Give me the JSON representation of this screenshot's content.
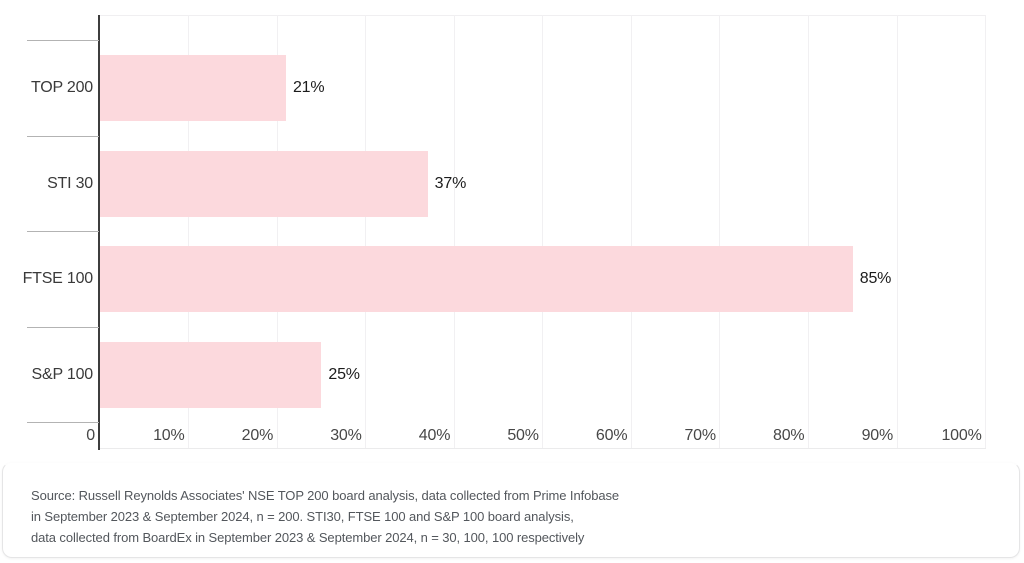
{
  "chart_data": {
    "type": "bar",
    "orientation": "horizontal",
    "title": "",
    "categories": [
      "TOP 200",
      "STI 30",
      "FTSE 100",
      "S&P 100"
    ],
    "values": [
      21,
      37,
      85,
      25
    ],
    "value_labels": [
      "21%",
      "37%",
      "85%",
      "25%"
    ],
    "xlim": [
      0,
      100
    ],
    "x_ticks": [
      0,
      10,
      20,
      30,
      40,
      50,
      60,
      70,
      80,
      90,
      100
    ],
    "x_tick_labels": [
      "0",
      "10%",
      "20%",
      "30%",
      "40%",
      "50%",
      "60%",
      "70%",
      "80%",
      "90%",
      "100%"
    ],
    "grid": "vertical gridlines every 10%",
    "legend": "none",
    "bar_color": "#FCD9DD"
  },
  "source_note": {
    "lines": [
      "Source: Russell Reynolds Associates' NSE TOP 200 board analysis, data collected from Prime Infobase",
      "in September 2023 & September 2024, n = 200. STI30, FTSE 100 and S&P 100 board analysis,",
      "data collected from BoardEx in September 2023 & September 2024, n = 30, 100, 100 respectively"
    ]
  },
  "colors": {
    "bar_fill": "#FCD9DD",
    "axis_line": "#3D3D3D",
    "gridline": "#F1F0F2",
    "category_tick": "#B3B3B3",
    "category_text": "#3A3A3A",
    "value_text": "#1C1C1C",
    "tick_text": "#474747",
    "source_text": "#53575C",
    "card_border": "#E5E5E6",
    "background": "#FFFFFF"
  }
}
